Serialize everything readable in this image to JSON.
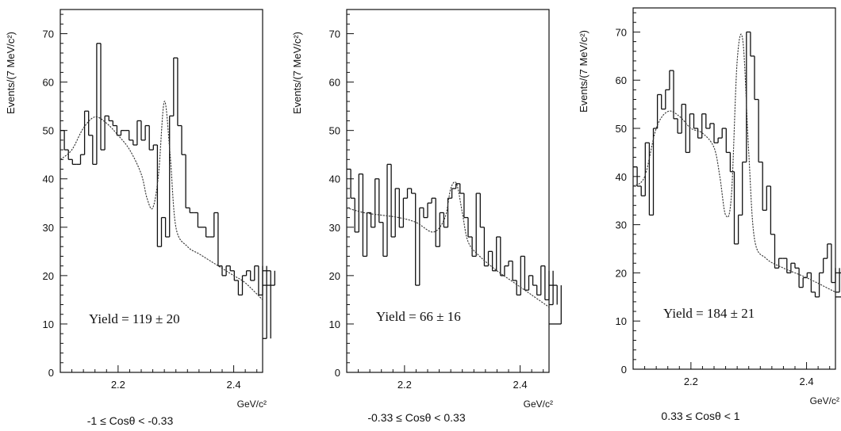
{
  "chart_data": [
    {
      "type": "histogram",
      "ylabel": "Events/(7 MeV/c²)",
      "xunit": "GeV/c²",
      "caption": "-1 ≤ Cosθ < -0.33",
      "annotation": "Yield  =  119 ± 20",
      "xlim": [
        2.1,
        2.45
      ],
      "ylim": [
        0,
        75
      ],
      "xticks_labeled": [
        "2.2",
        "2.4"
      ],
      "yticks_labeled": [
        "0",
        "10",
        "20",
        "30",
        "40",
        "50",
        "60",
        "70"
      ],
      "bin_width": 0.007,
      "counts": [
        50,
        46,
        44,
        43,
        43,
        45,
        54,
        49,
        43,
        68,
        46,
        53,
        52,
        51,
        49,
        50,
        50,
        48,
        47,
        52,
        48,
        51,
        46,
        47,
        26,
        32,
        28,
        53,
        65,
        51,
        45,
        34,
        33,
        33,
        30,
        30,
        28,
        28,
        33,
        22,
        20,
        22,
        21,
        19,
        16,
        20,
        21,
        19,
        22,
        16,
        22,
        7,
        21,
        18
      ],
      "fit": {
        "x": [
          2.1,
          2.12,
          2.14,
          2.16,
          2.18,
          2.2,
          2.22,
          2.24,
          2.25,
          2.26,
          2.27,
          2.28,
          2.29,
          2.3,
          2.32,
          2.34,
          2.36,
          2.38,
          2.4,
          2.42,
          2.45
        ],
        "y": [
          44.0,
          46.0,
          50.5,
          52.8,
          51.5,
          49.0,
          46.0,
          41.0,
          36.0,
          34.0,
          41.0,
          56.0,
          45.0,
          30.0,
          26.0,
          24.5,
          23.0,
          21.5,
          20.0,
          18.5,
          15.0
        ]
      }
    },
    {
      "type": "histogram",
      "ylabel": "Events/(7 MeV/c²)",
      "xunit": "GeV/c²",
      "caption": "-0.33 ≤ Cosθ < 0.33",
      "annotation": "Yield  =  66 ± 16",
      "xlim": [
        2.1,
        2.45
      ],
      "ylim": [
        0,
        75
      ],
      "xticks_labeled": [
        "2.2",
        "2.4"
      ],
      "yticks_labeled": [
        "0",
        "10",
        "20",
        "30",
        "40",
        "50",
        "60",
        "70"
      ],
      "bin_width": 0.007,
      "counts": [
        42,
        36,
        29,
        41,
        24,
        33,
        30,
        40,
        31,
        24,
        43,
        28,
        38,
        30,
        36,
        38,
        37,
        18,
        34,
        32,
        35,
        36,
        26,
        33,
        30,
        36,
        38,
        39,
        37,
        32,
        28,
        24,
        37,
        30,
        22,
        25,
        21,
        28,
        20,
        22,
        23,
        19,
        16,
        24,
        17,
        20,
        18,
        16,
        22,
        15,
        21,
        14,
        18,
        10
      ],
      "fit": {
        "x": [
          2.1,
          2.13,
          2.16,
          2.19,
          2.22,
          2.25,
          2.27,
          2.28,
          2.29,
          2.3,
          2.31,
          2.33,
          2.36,
          2.39,
          2.42,
          2.45
        ],
        "y": [
          34.0,
          33.0,
          32.5,
          32.0,
          31.0,
          29.0,
          32.0,
          38.0,
          39.0,
          33.0,
          27.0,
          24.0,
          21.0,
          18.5,
          16.0,
          13.5
        ]
      }
    },
    {
      "type": "histogram",
      "ylabel": "Events/(7 MeV/c²)",
      "xunit": "GeV/c²",
      "caption": "0.33 ≤ Cosθ < 1",
      "annotation": "Yield  =  184 ± 21",
      "xlim": [
        2.1,
        2.45
      ],
      "ylim": [
        0,
        75
      ],
      "xticks_labeled": [
        "2.2",
        "2.4"
      ],
      "yticks_labeled": [
        "0",
        "10",
        "20",
        "30",
        "40",
        "50",
        "60",
        "70"
      ],
      "bin_width": 0.007,
      "counts": [
        42,
        38,
        36,
        47,
        32,
        50,
        57,
        54,
        58,
        62,
        52,
        49,
        55,
        45,
        53,
        50,
        48,
        53,
        50,
        51,
        47,
        48,
        50,
        45,
        41,
        26,
        32,
        43,
        70,
        65,
        56,
        43,
        33,
        38,
        28,
        21,
        23,
        23,
        20,
        22,
        21,
        17,
        19,
        20,
        16,
        15,
        20,
        23,
        26,
        18,
        21,
        16,
        20,
        15
      ],
      "fit": {
        "x": [
          2.1,
          2.12,
          2.14,
          2.16,
          2.18,
          2.2,
          2.22,
          2.24,
          2.25,
          2.26,
          2.27,
          2.28,
          2.29,
          2.3,
          2.31,
          2.33,
          2.36,
          2.4,
          2.45
        ],
        "y": [
          38.0,
          40.0,
          50.0,
          53.5,
          52.5,
          50.0,
          49.0,
          46.0,
          40.0,
          32.0,
          36.0,
          64.0,
          68.0,
          45.0,
          27.0,
          23.0,
          21.0,
          19.0,
          16.0
        ]
      }
    }
  ]
}
